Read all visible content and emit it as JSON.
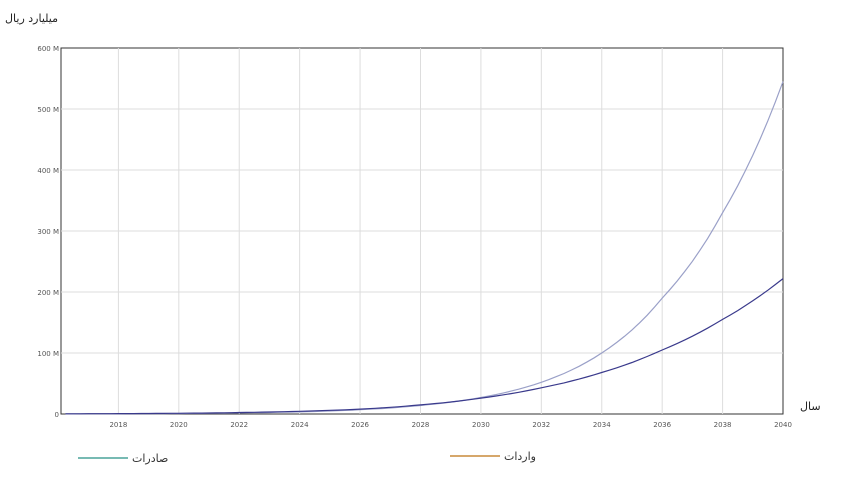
{
  "chart_data": {
    "type": "line",
    "ylabel": "میلیارد ریال",
    "xlabel": "سال",
    "x": [
      2016,
      2018,
      2020,
      2022,
      2024,
      2026,
      2028,
      2030,
      2032,
      2034,
      2036,
      2038,
      2040
    ],
    "xticks": [
      2018,
      2020,
      2022,
      2024,
      2026,
      2028,
      2030,
      2032,
      2034,
      2036,
      2038,
      2040
    ],
    "xtick_labels": [
      "2018",
      "2020",
      "2022",
      "2024",
      "2026",
      "2028",
      "2030",
      "2032",
      "2034",
      "2036",
      "2038",
      "2040"
    ],
    "xlim": [
      2016.1,
      2040
    ],
    "ylim": [
      0,
      600
    ],
    "yticks": [
      0,
      100,
      200,
      300,
      400,
      500,
      600
    ],
    "ytick_labels": [
      "0",
      "100 M",
      "200 M",
      "300 M",
      "400 M",
      "500 M",
      "600 M"
    ],
    "grid": true,
    "legend_position": "bottom",
    "series": [
      {
        "name": "صادرات",
        "color": "#9aa0c8",
        "legend_color": "#4aa39a",
        "values": [
          0.2,
          0.4,
          0.9,
          1.8,
          3.5,
          7,
          14,
          27,
          52,
          100,
          190,
          330,
          545
        ]
      },
      {
        "name": "واردات",
        "color": "#3a3a8c",
        "legend_color": "#c98a3a",
        "values": [
          0.3,
          0.6,
          1.2,
          2.4,
          4.5,
          8,
          15,
          26,
          43,
          68,
          105,
          155,
          222
        ]
      }
    ]
  }
}
